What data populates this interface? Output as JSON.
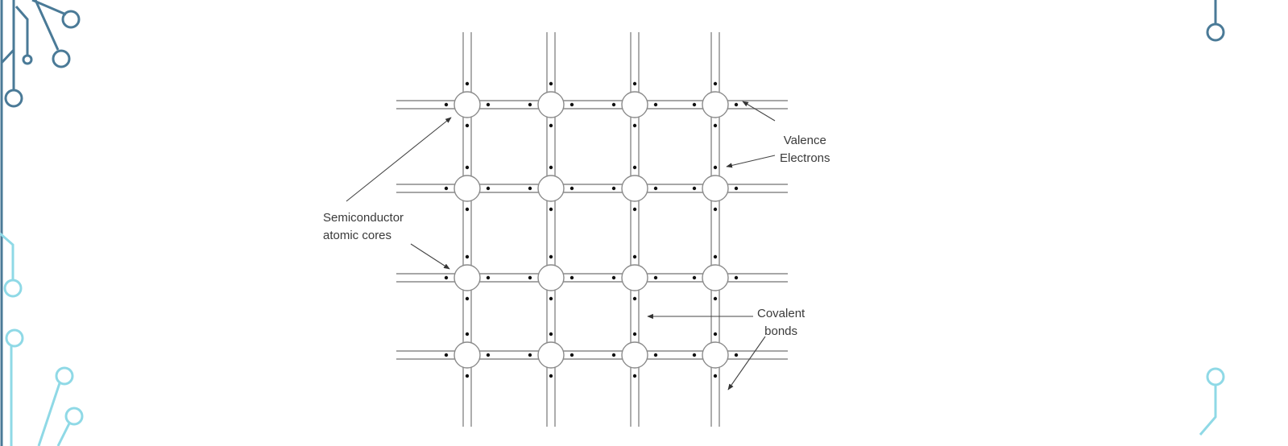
{
  "colors": {
    "circuit_dark": "#4a7a97",
    "circuit_light": "#8fd9e6",
    "lattice": "#8a8a8a",
    "electron": "#111111",
    "text": "#3a3a3a"
  },
  "lattice": {
    "rows": 4,
    "cols": 4
  },
  "labels": {
    "valence": {
      "line1": "Valence",
      "line2": "Electrons"
    },
    "semiconductor": {
      "line1": "Semiconductor",
      "line2": "atomic cores"
    },
    "covalent": {
      "line1": "Covalent",
      "line2": "bonds"
    }
  }
}
